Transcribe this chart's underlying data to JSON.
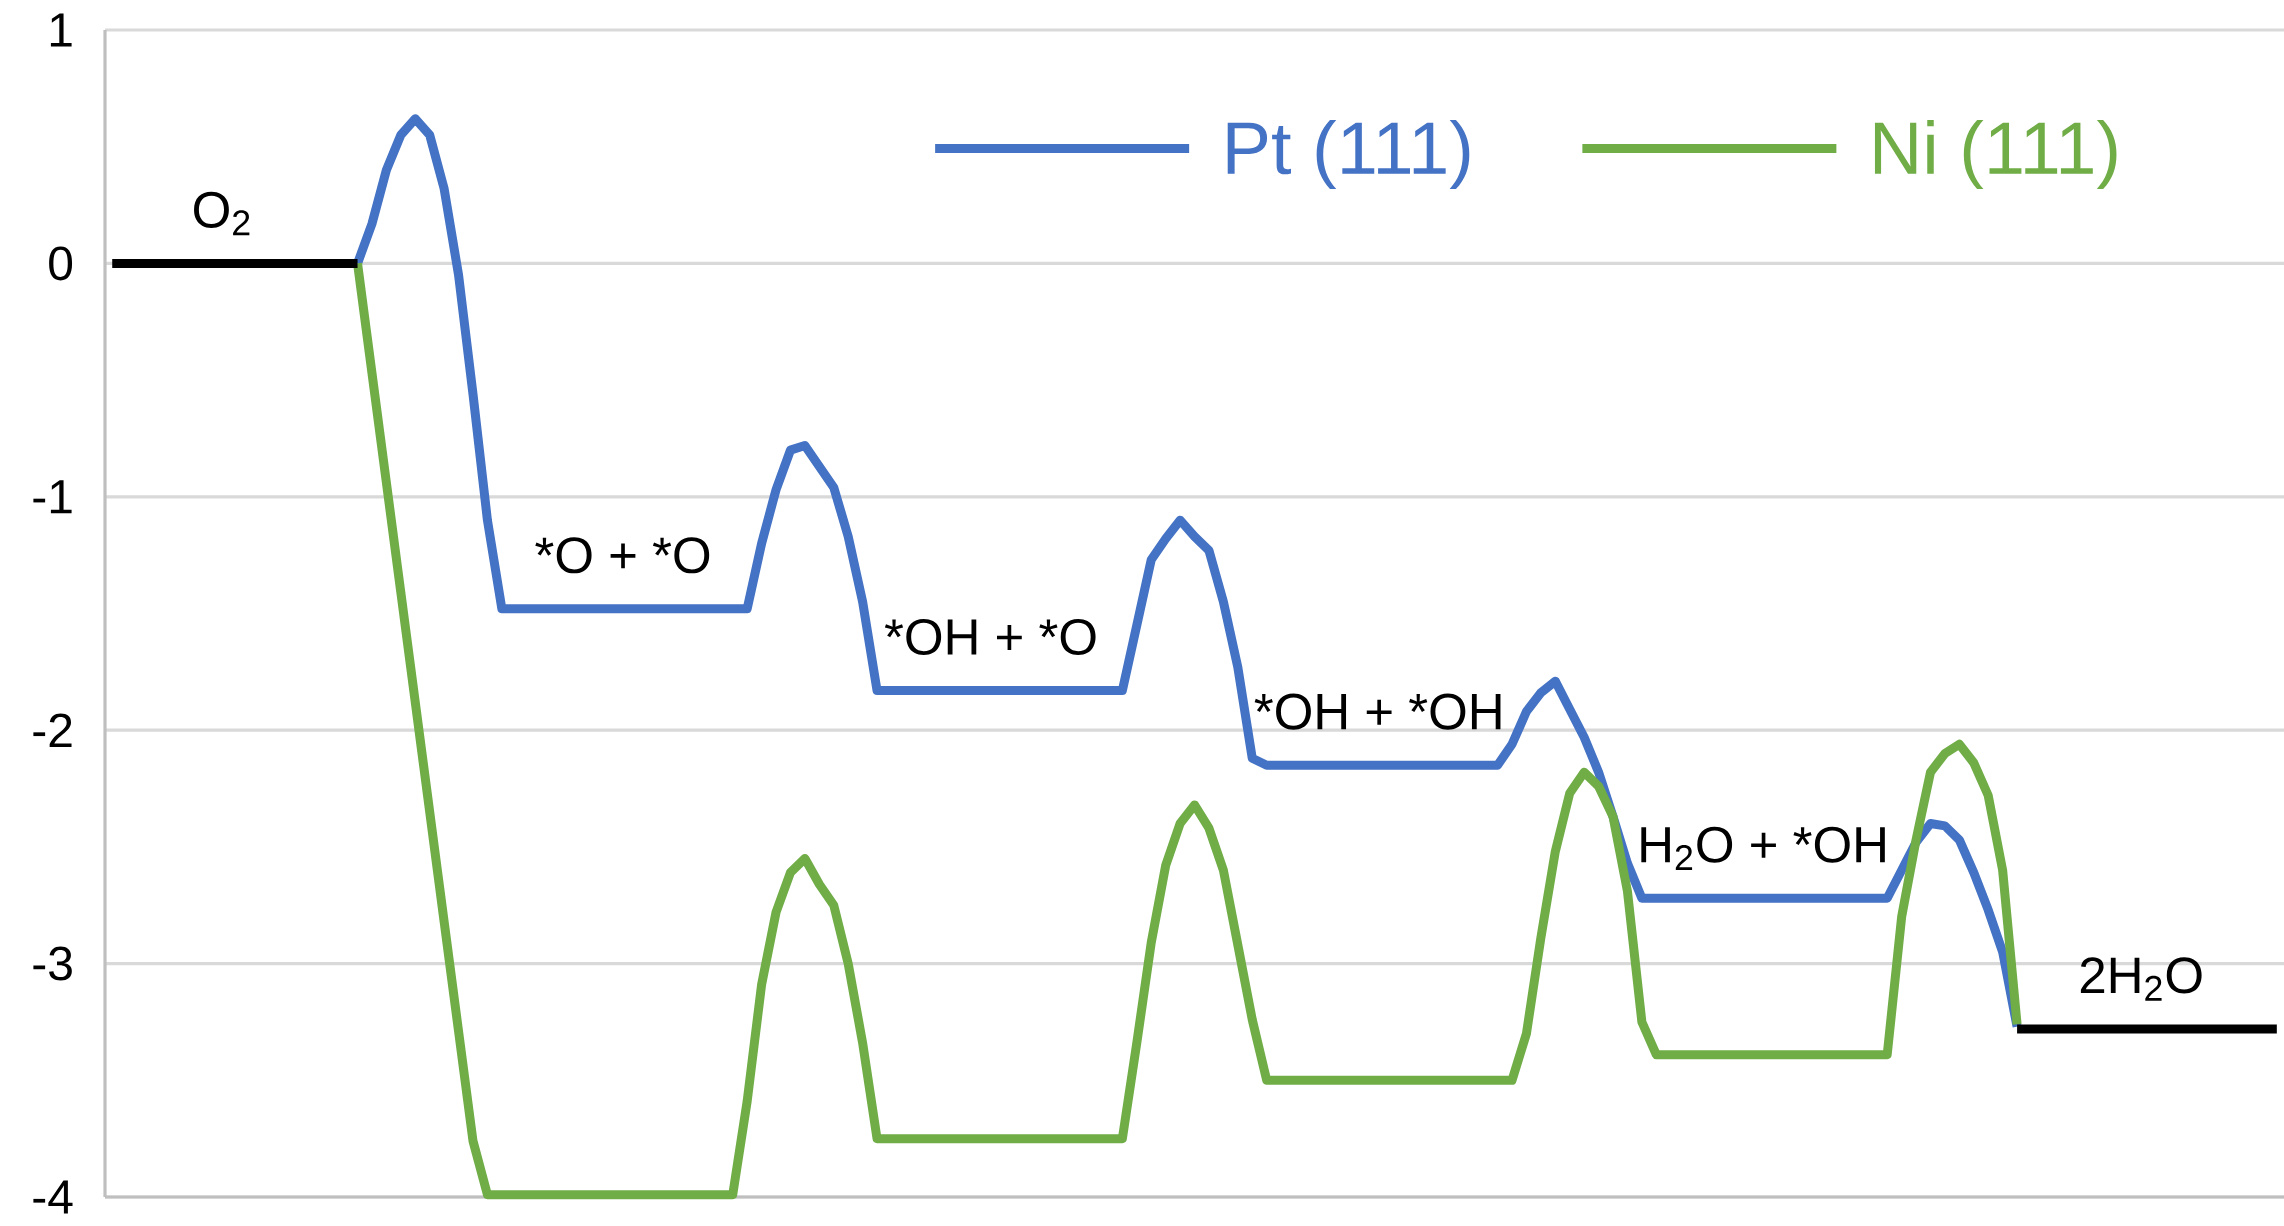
{
  "chart_data": {
    "type": "line",
    "categories": [
      null,
      null,
      null,
      null,
      null,
      null,
      null,
      null,
      null,
      null,
      null,
      null,
      null,
      null,
      null,
      null,
      null,
      null,
      null,
      null,
      null,
      null,
      null,
      null,
      null,
      null,
      null,
      null,
      null,
      null,
      null,
      null,
      null,
      null,
      null,
      null,
      null,
      null,
      null,
      null,
      null,
      null,
      null,
      null,
      null,
      null,
      null,
      null,
      null,
      null,
      null,
      null,
      null,
      null,
      null,
      null,
      null,
      null,
      null,
      null,
      null,
      null,
      null,
      null,
      null,
      null,
      null,
      null,
      null,
      null,
      null,
      null,
      null,
      null,
      null,
      null,
      null,
      null,
      null,
      null,
      null,
      null,
      null,
      null,
      null,
      null,
      null,
      null,
      null,
      null,
      null,
      null,
      null,
      null,
      null,
      null,
      null,
      null,
      null,
      null,
      null,
      null,
      null,
      null,
      null,
      null,
      null,
      null,
      null,
      null,
      null,
      null,
      null,
      null,
      null,
      null,
      null,
      null,
      null,
      null,
      null,
      null,
      null,
      null,
      null,
      null,
      null,
      null,
      null,
      null,
      null,
      null,
      null,
      null,
      null,
      null,
      null,
      null,
      null,
      null,
      null,
      null,
      null,
      null,
      null,
      null,
      null,
      null,
      null,
      null,
      null
    ],
    "ylim": [
      -4,
      1
    ],
    "yticks": [
      -4,
      -3,
      -2,
      -1,
      0,
      1
    ],
    "tick_labels": "y",
    "grid": "y",
    "legend": "top right",
    "series": [
      {
        "name": "Pt (111)",
        "color": "#4472c4",
        "values": [
          null,
          null,
          null,
          null,
          null,
          null,
          null,
          null,
          null,
          null,
          null,
          null,
          null,
          null,
          null,
          null,
          null,
          0,
          0.17,
          0.4,
          0.55,
          0.62,
          0.55,
          0.32,
          -0.05,
          -0.56,
          -1.1,
          -1.48,
          -1.48,
          -1.48,
          -1.48,
          -1.48,
          -1.48,
          -1.48,
          -1.48,
          -1.48,
          -1.48,
          -1.48,
          -1.48,
          -1.48,
          -1.48,
          -1.48,
          -1.48,
          -1.48,
          -1.48,
          -1.2,
          -0.97,
          -0.8,
          -0.78,
          -0.87,
          -0.96,
          -1.17,
          -1.45,
          -1.83,
          -1.83,
          -1.83,
          -1.83,
          -1.83,
          -1.83,
          -1.83,
          -1.83,
          -1.83,
          -1.83,
          -1.83,
          -1.83,
          -1.83,
          -1.83,
          -1.83,
          -1.83,
          -1.83,
          -1.83,
          -1.55,
          -1.27,
          -1.18,
          -1.1,
          -1.17,
          -1.23,
          -1.45,
          -1.73,
          -2.12,
          -2.15,
          -2.15,
          -2.15,
          -2.15,
          -2.15,
          -2.15,
          -2.15,
          -2.15,
          -2.15,
          -2.15,
          -2.15,
          -2.15,
          -2.15,
          -2.15,
          -2.15,
          -2.15,
          -2.15,
          -2.06,
          -1.92,
          -1.84,
          -1.79,
          -1.91,
          -2.03,
          -2.18,
          -2.37,
          -2.57,
          -2.72,
          -2.72,
          -2.72,
          -2.72,
          -2.72,
          -2.72,
          -2.72,
          -2.72,
          -2.72,
          -2.72,
          -2.72,
          -2.72,
          -2.72,
          -2.72,
          -2.72,
          -2.72,
          -2.72,
          -2.72,
          -2.6,
          -2.48,
          -2.4,
          -2.41,
          -2.47,
          -2.61,
          -2.77,
          -2.95,
          -3.27,
          null,
          null,
          null,
          null,
          null,
          null,
          null,
          null,
          null,
          null,
          null,
          null,
          null,
          null,
          null,
          null,
          null,
          null
        ]
      },
      {
        "name": "Ni (111)",
        "color": "#70ad47",
        "values": [
          null,
          null,
          null,
          null,
          null,
          null,
          null,
          null,
          null,
          null,
          null,
          null,
          null,
          null,
          null,
          null,
          null,
          0,
          -0.47,
          -0.94,
          -1.41,
          -1.88,
          -2.35,
          -2.82,
          -3.29,
          -3.76,
          -3.99,
          -3.99,
          -3.99,
          -3.99,
          -3.99,
          -3.99,
          -3.99,
          -3.99,
          -3.99,
          -3.99,
          -3.99,
          -3.99,
          -3.99,
          -3.99,
          -3.99,
          -3.99,
          -3.99,
          -3.99,
          -3.59,
          -3.09,
          -2.78,
          -2.61,
          -2.55,
          -2.66,
          -2.75,
          -3.0,
          -3.34,
          -3.75,
          -3.75,
          -3.75,
          -3.75,
          -3.75,
          -3.75,
          -3.75,
          -3.75,
          -3.75,
          -3.75,
          -3.75,
          -3.75,
          -3.75,
          -3.75,
          -3.75,
          -3.75,
          -3.75,
          -3.75,
          -3.34,
          -2.91,
          -2.58,
          -2.4,
          -2.32,
          -2.42,
          -2.6,
          -2.92,
          -3.24,
          -3.5,
          -3.5,
          -3.5,
          -3.5,
          -3.5,
          -3.5,
          -3.5,
          -3.5,
          -3.5,
          -3.5,
          -3.5,
          -3.5,
          -3.5,
          -3.5,
          -3.5,
          -3.5,
          -3.5,
          -3.5,
          -3.3,
          -2.89,
          -2.52,
          -2.27,
          -2.18,
          -2.24,
          -2.37,
          -2.69,
          -3.25,
          -3.39,
          -3.39,
          -3.39,
          -3.39,
          -3.39,
          -3.39,
          -3.39,
          -3.39,
          -3.39,
          -3.39,
          -3.39,
          -3.39,
          -3.39,
          -3.39,
          -3.39,
          -3.39,
          -3.39,
          -2.8,
          -2.47,
          -2.18,
          -2.1,
          -2.06,
          -2.14,
          -2.28,
          -2.6,
          -3.26,
          null,
          null,
          null,
          null,
          null,
          null,
          null,
          null,
          null,
          null,
          null,
          null,
          null,
          null,
          null,
          null,
          null,
          null
        ]
      },
      {
        "color": "#000000",
        "values": [
          0,
          0,
          0,
          0,
          0,
          0,
          0,
          0,
          0,
          0,
          0,
          0,
          0,
          0,
          0,
          0,
          0,
          0,
          null,
          null,
          null,
          null,
          null,
          null,
          null,
          null,
          null,
          null,
          null,
          null,
          null,
          null,
          null,
          null,
          null,
          null,
          null,
          null,
          null,
          null,
          null,
          null,
          null,
          null,
          null,
          null,
          null,
          null,
          null,
          null,
          null,
          null,
          null,
          null,
          null,
          null,
          null,
          null,
          null,
          null,
          null,
          null,
          null,
          null,
          null,
          null,
          null,
          null,
          null,
          null,
          null,
          null,
          null,
          null,
          null,
          null,
          null,
          null,
          null,
          null,
          null,
          null,
          null,
          null,
          null,
          null,
          null,
          null,
          null,
          null,
          null,
          null,
          null,
          null,
          null,
          null,
          null,
          null,
          null,
          null,
          null,
          null,
          null,
          null,
          null,
          null,
          null,
          null,
          null,
          null,
          null,
          null,
          null,
          null,
          null,
          null,
          null,
          null,
          null,
          null,
          null,
          null,
          null,
          null,
          null,
          null,
          null,
          null,
          null,
          null,
          null,
          null,
          null,
          null,
          null,
          null,
          null,
          null,
          null,
          null,
          null,
          null,
          null,
          null,
          null,
          null,
          null,
          null,
          null,
          null,
          null
        ]
      },
      {
        "color": "#000000",
        "values": [
          null,
          null,
          null,
          null,
          null,
          null,
          null,
          null,
          null,
          null,
          null,
          null,
          null,
          null,
          null,
          null,
          null,
          null,
          null,
          null,
          null,
          null,
          null,
          null,
          null,
          null,
          null,
          null,
          null,
          null,
          null,
          null,
          null,
          null,
          null,
          null,
          null,
          null,
          null,
          null,
          null,
          null,
          null,
          null,
          null,
          null,
          null,
          null,
          null,
          null,
          null,
          null,
          null,
          null,
          null,
          null,
          null,
          null,
          null,
          null,
          null,
          null,
          null,
          null,
          null,
          null,
          null,
          null,
          null,
          null,
          null,
          null,
          null,
          null,
          null,
          null,
          null,
          null,
          null,
          null,
          null,
          null,
          null,
          null,
          null,
          null,
          null,
          null,
          null,
          null,
          null,
          null,
          null,
          null,
          null,
          null,
          null,
          null,
          null,
          null,
          null,
          null,
          null,
          null,
          null,
          null,
          null,
          null,
          null,
          null,
          null,
          null,
          null,
          null,
          null,
          null,
          null,
          null,
          null,
          null,
          null,
          null,
          null,
          null,
          null,
          null,
          null,
          null,
          null,
          null,
          null,
          null,
          -3.28,
          -3.28,
          -3.28,
          -3.28,
          -3.28,
          -3.28,
          -3.28,
          -3.28,
          -3.28,
          -3.28,
          -3.28,
          -3.28,
          -3.28,
          -3.28,
          -3.28,
          -3.28,
          -3.28,
          -3.28,
          -3.28
        ]
      }
    ],
    "annotations": [
      {
        "text": "O$_{2}$",
        "y": 0
      },
      {
        "text": "*O + *O",
        "y": -1.48
      },
      {
        "text": "*OH + *O",
        "y": -1.83
      },
      {
        "text": "*OH + *OH",
        "y": -2.15
      },
      {
        "text": "H$_{2}$O + *OH",
        "y": -2.72
      },
      {
        "text": "2H$_{2}$O",
        "y": -3.28
      }
    ]
  }
}
